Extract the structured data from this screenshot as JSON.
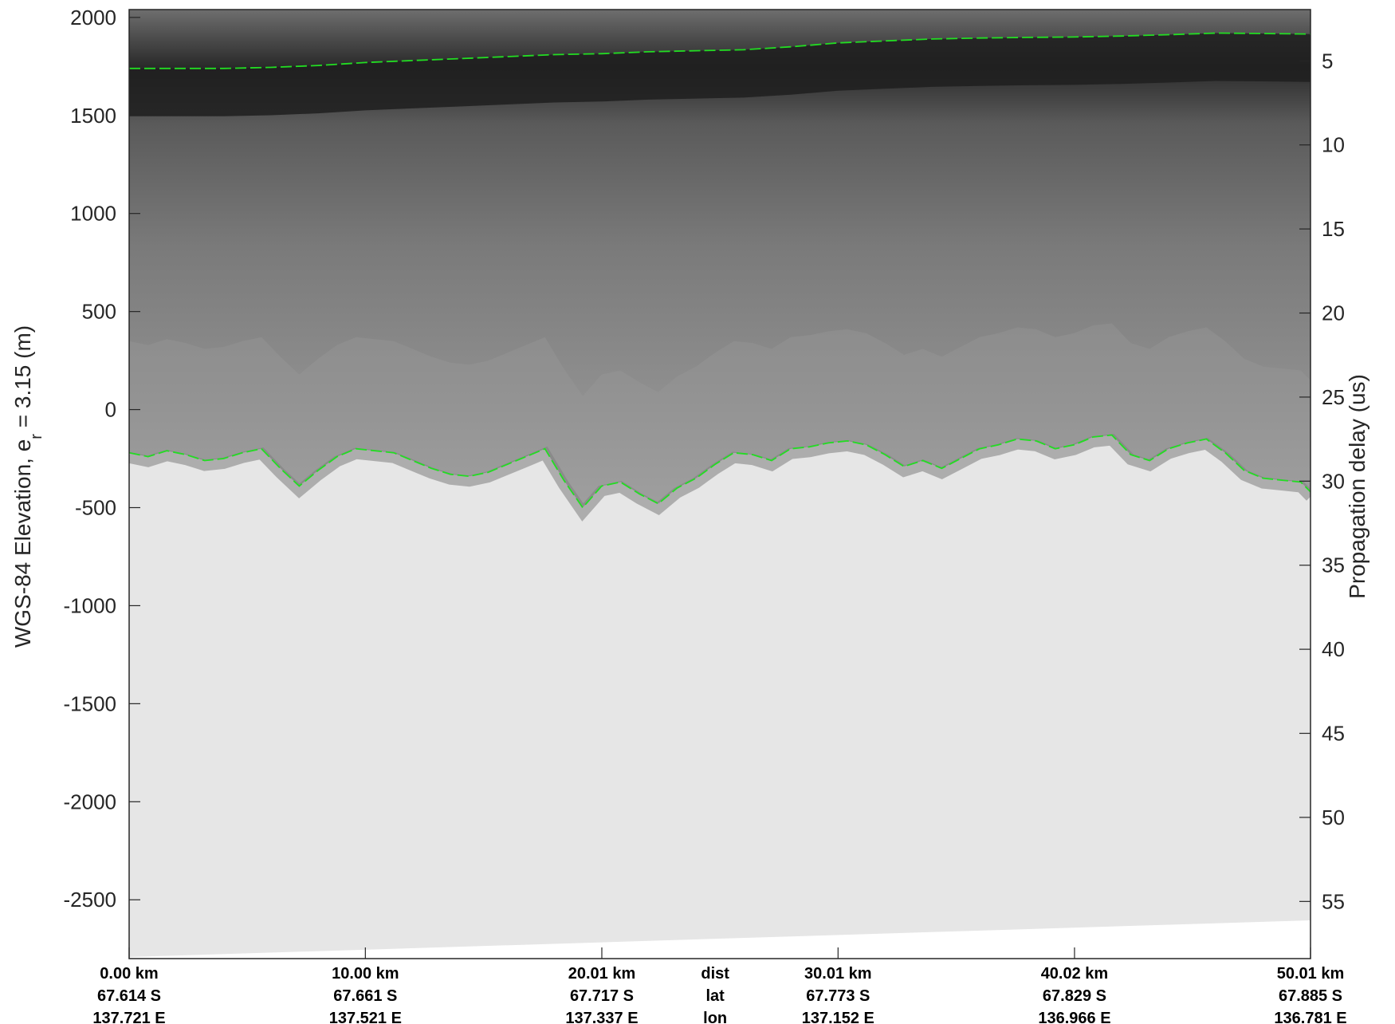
{
  "title": "",
  "chart_data": {
    "type": "heatmap",
    "description_type": "radargram",
    "ylabel_left": "WGS-84 Elevation, e",
    "ylabel_left_sub": "r",
    "ylabel_left_rest": " = 3.15 (m)",
    "ylabel_right": "Propagation delay (us)",
    "y_left": {
      "lim": [
        -2800,
        2040
      ],
      "ticks": [
        2000,
        1500,
        1000,
        500,
        0,
        -500,
        -1000,
        -1500,
        -2000,
        -2500
      ],
      "tick_labels": [
        "2000",
        "1500",
        "1000",
        "500",
        "0",
        "-500",
        "-1000",
        "-1500",
        "-2000",
        "-2500"
      ]
    },
    "y_right": {
      "lim": [
        1.95,
        58.4
      ],
      "ticks": [
        5,
        10,
        15,
        20,
        25,
        30,
        35,
        40,
        45,
        50,
        55
      ],
      "tick_labels": [
        "5",
        "10",
        "15",
        "20",
        "25",
        "30",
        "35",
        "40",
        "45",
        "50",
        "55"
      ]
    },
    "x": {
      "lim": [
        0,
        50.01
      ],
      "ticks": [
        0.0,
        10.0,
        20.01,
        30.01,
        40.02,
        50.01
      ]
    },
    "bottom_row_labels": [
      "dist",
      "lat",
      "lon"
    ],
    "bottom_columns": [
      {
        "dist": "0.00 km",
        "lat": "67.614 S",
        "lon": "137.721 E"
      },
      {
        "dist": "10.00 km",
        "lat": "67.661 S",
        "lon": "137.521 E"
      },
      {
        "dist": "20.01 km",
        "lat": "67.717 S",
        "lon": "137.337 E"
      },
      {
        "dist": "30.01 km",
        "lat": "67.773 S",
        "lon": "137.152 E"
      },
      {
        "dist": "40.02 km",
        "lat": "67.829 S",
        "lon": "136.966 E"
      },
      {
        "dist": "50.01 km",
        "lat": "67.885 S",
        "lon": "136.781 E"
      }
    ],
    "series": [
      {
        "key": "surface",
        "color": "#22dd22",
        "x": [
          0,
          2,
          4,
          6,
          8,
          10,
          12,
          14,
          16,
          18,
          20,
          22,
          24,
          26,
          28,
          30,
          32,
          34,
          36,
          38,
          40,
          42,
          44,
          46,
          48,
          50.01
        ],
        "y": [
          1740,
          1740,
          1740,
          1745,
          1755,
          1770,
          1780,
          1790,
          1800,
          1810,
          1815,
          1825,
          1830,
          1835,
          1850,
          1870,
          1880,
          1890,
          1895,
          1898,
          1900,
          1905,
          1912,
          1920,
          1918,
          1915
        ]
      },
      {
        "key": "bed",
        "color": "#22dd22",
        "x": [
          0,
          0.8,
          1.6,
          2.4,
          3.2,
          4.0,
          4.8,
          5.6,
          6.4,
          7.2,
          8.0,
          8.8,
          9.6,
          10.4,
          11.2,
          12.0,
          12.8,
          13.6,
          14.4,
          15.2,
          16.0,
          16.8,
          17.6,
          18.4,
          19.2,
          20.0,
          20.8,
          21.6,
          22.4,
          23.2,
          24.0,
          24.8,
          25.6,
          26.4,
          27.2,
          28.0,
          28.8,
          29.6,
          30.4,
          31.2,
          32.0,
          32.8,
          33.6,
          34.4,
          35.2,
          36.0,
          36.8,
          37.6,
          38.4,
          39.2,
          40.0,
          40.8,
          41.6,
          42.4,
          43.2,
          44.0,
          44.8,
          45.6,
          46.4,
          47.2,
          48.0,
          48.8,
          49.6,
          50.01
        ],
        "y": [
          -220,
          -240,
          -210,
          -230,
          -260,
          -250,
          -220,
          -200,
          -300,
          -390,
          -310,
          -240,
          -200,
          -210,
          -220,
          -260,
          -300,
          -330,
          -340,
          -320,
          -280,
          -240,
          -200,
          -360,
          -500,
          -390,
          -370,
          -430,
          -480,
          -400,
          -350,
          -280,
          -220,
          -230,
          -260,
          -200,
          -190,
          -170,
          -160,
          -180,
          -230,
          -290,
          -260,
          -300,
          -250,
          -200,
          -180,
          -150,
          -160,
          -200,
          -180,
          -140,
          -130,
          -230,
          -260,
          -200,
          -170,
          -150,
          -220,
          -310,
          -350,
          -360,
          -370,
          -420
        ]
      }
    ],
    "grid": false,
    "colormap": "gray"
  }
}
